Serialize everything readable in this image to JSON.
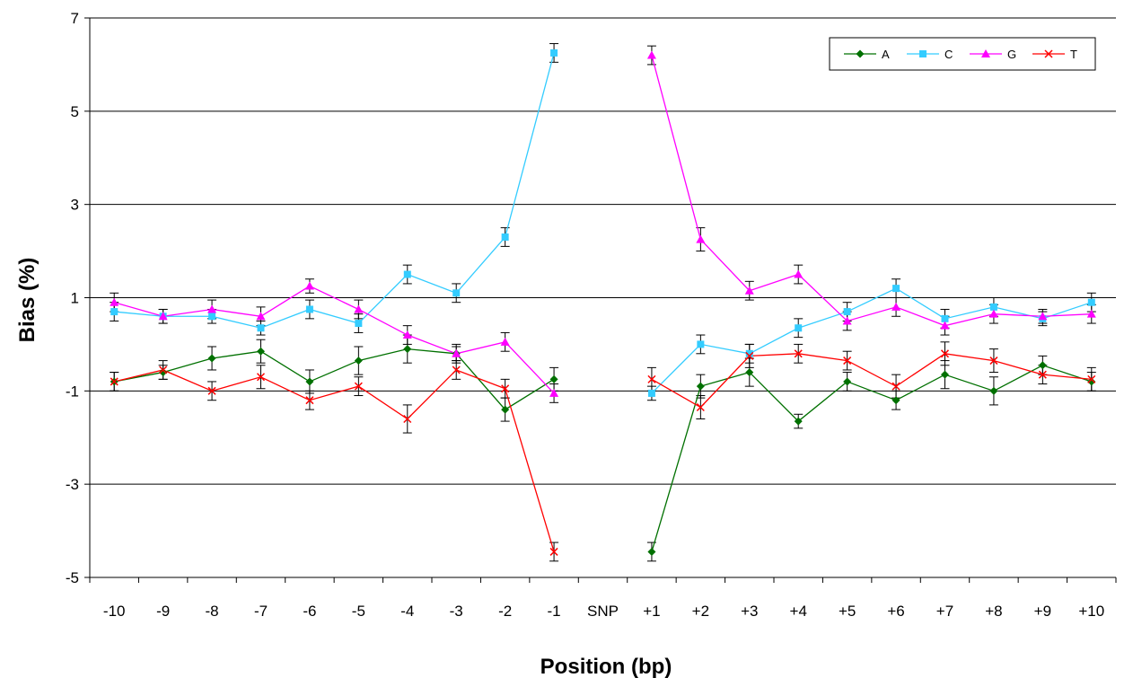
{
  "chart_data": {
    "type": "line",
    "title": "",
    "xlabel": "Position (bp)",
    "ylabel": "Bias (%)",
    "ylim": [
      -5,
      7
    ],
    "yticks": [
      -5,
      -3,
      -1,
      1,
      3,
      5,
      7
    ],
    "grid": true,
    "legend_position": "top-right",
    "x_tick_labels": [
      "-10",
      "-9",
      "-8",
      "-7",
      "-6",
      "-5",
      "-4",
      "-3",
      "-2",
      "-1",
      "SNP",
      "+1",
      "+2",
      "+3",
      "+4",
      "+5",
      "+6",
      "+7",
      "+8",
      "+9",
      "+10"
    ],
    "left_positions": [
      "-10",
      "-9",
      "-8",
      "-7",
      "-6",
      "-5",
      "-4",
      "-3",
      "-2",
      "-1"
    ],
    "right_positions": [
      "+1",
      "+2",
      "+3",
      "+4",
      "+5",
      "+6",
      "+7",
      "+8",
      "+9",
      "+10"
    ],
    "series": [
      {
        "name": "A",
        "color": "#007000",
        "marker": "diamond",
        "left": [
          -0.8,
          -0.6,
          -0.3,
          -0.15,
          -0.8,
          -0.35,
          -0.1,
          -0.2,
          -1.4,
          -0.75
        ],
        "right": [
          -4.45,
          -0.9,
          -0.6,
          -1.65,
          -0.8,
          -1.2,
          -0.65,
          -1.0,
          -0.45,
          -0.8
        ],
        "err_left": [
          0.2,
          0.15,
          0.25,
          0.25,
          0.25,
          0.3,
          0.3,
          0.2,
          0.25,
          0.25
        ],
        "err_right": [
          0.2,
          0.25,
          0.3,
          0.15,
          0.2,
          0.2,
          0.3,
          0.3,
          0.2,
          0.2
        ]
      },
      {
        "name": "C",
        "color": "#33CCFF",
        "marker": "square",
        "left": [
          0.7,
          0.6,
          0.6,
          0.35,
          0.75,
          0.45,
          1.5,
          1.1,
          2.3,
          6.25
        ],
        "right": [
          -1.05,
          0.0,
          -0.2,
          0.35,
          0.7,
          1.2,
          0.55,
          0.8,
          0.55,
          0.9
        ],
        "err_left": [
          0.2,
          0.15,
          0.15,
          0.15,
          0.2,
          0.2,
          0.2,
          0.2,
          0.2,
          0.2
        ],
        "err_right": [
          0.15,
          0.2,
          0.2,
          0.2,
          0.2,
          0.2,
          0.2,
          0.2,
          0.15,
          0.2
        ]
      },
      {
        "name": "G",
        "color": "#FF00FF",
        "marker": "triangle",
        "left": [
          0.9,
          0.6,
          0.75,
          0.6,
          1.25,
          0.75,
          0.2,
          -0.2,
          0.05,
          -1.05
        ],
        "right": [
          6.2,
          2.25,
          1.15,
          1.5,
          0.5,
          0.8,
          0.4,
          0.65,
          0.6,
          0.65
        ],
        "err_left": [
          0.2,
          0.15,
          0.2,
          0.2,
          0.15,
          0.2,
          0.2,
          0.15,
          0.2,
          0.2
        ],
        "err_right": [
          0.2,
          0.25,
          0.2,
          0.2,
          0.2,
          0.2,
          0.2,
          0.2,
          0.15,
          0.2
        ]
      },
      {
        "name": "T",
        "color": "#FF0000",
        "marker": "x",
        "left": [
          -0.8,
          -0.55,
          -1.0,
          -0.7,
          -1.2,
          -0.9,
          -1.6,
          -0.55,
          -0.95,
          -4.45
        ],
        "right": [
          -0.75,
          -1.35,
          -0.25,
          -0.2,
          -0.35,
          -0.9,
          -0.2,
          -0.35,
          -0.65,
          -0.75
        ],
        "err_left": [
          0.2,
          0.2,
          0.2,
          0.25,
          0.2,
          0.2,
          0.3,
          0.2,
          0.2,
          0.2
        ],
        "err_right": [
          0.25,
          0.25,
          0.25,
          0.2,
          0.2,
          0.25,
          0.25,
          0.25,
          0.2,
          0.25
        ]
      }
    ]
  }
}
